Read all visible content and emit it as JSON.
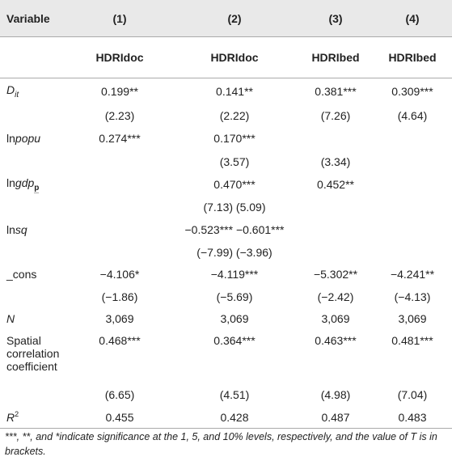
{
  "table": {
    "header": [
      "Variable",
      "(1)",
      "(2)",
      "(3)",
      "(4)"
    ],
    "subheader": [
      null,
      "HDRIdoc",
      "HDRIdoc",
      "HDRIbed",
      "HDRIbed"
    ],
    "rows": [
      {
        "label": [
          {
            "text": "D",
            "style": "italic"
          },
          {
            "text": "it",
            "style": "italic-sub"
          }
        ],
        "cells": [
          "0.199**",
          "0.141**",
          "0.381***",
          "0.309***"
        ]
      },
      {
        "label": null,
        "cells": [
          "(2.23)",
          "(2.22)",
          "(7.26)",
          "(4.64)"
        ]
      },
      {
        "label": [
          {
            "text": "ln",
            "style": "normal"
          },
          {
            "text": "popu",
            "style": "italic"
          }
        ],
        "cells": [
          "0.274***",
          "0.170***",
          null,
          null
        ]
      },
      {
        "label": null,
        "cells": [
          null,
          "(3.57)",
          "(3.34)",
          null
        ]
      },
      {
        "label": [
          {
            "text": "ln",
            "style": "normal"
          },
          {
            "text": "gdp",
            "style": "italic"
          },
          {
            "text": "p",
            "style": "sub"
          }
        ],
        "cells": [
          null,
          "0.470***",
          "0.452**",
          null
        ]
      },
      {
        "label": null,
        "cells": [
          null,
          "(7.13) (5.09)",
          null,
          null
        ]
      },
      {
        "label": [
          {
            "text": "ln",
            "style": "normal"
          },
          {
            "text": "sq",
            "style": "italic"
          }
        ],
        "cells": [
          null,
          "−0.523*** −0.601***",
          null,
          null
        ]
      },
      {
        "label": null,
        "cells": [
          null,
          "(−7.99) (−3.96)",
          null,
          null
        ]
      },
      {
        "label": [
          {
            "text": "_cons",
            "style": "normal"
          }
        ],
        "cells": [
          "−4.106*",
          "−4.119***",
          "−5.302**",
          "−4.241**"
        ]
      },
      {
        "label": null,
        "cells": [
          "(−1.86)",
          "(−5.69)",
          "(−2.42)",
          "(−4.13)"
        ]
      },
      {
        "label": [
          {
            "text": "N",
            "style": "italic"
          }
        ],
        "cells": [
          "3,069",
          "3,069",
          "3,069",
          "3,069"
        ]
      },
      {
        "label": [
          {
            "text": "Spatial correlation coefficient",
            "style": "normal"
          }
        ],
        "cells": [
          "0.468***",
          "0.364***",
          "0.463***",
          "0.481***"
        ]
      },
      {
        "label": null,
        "cells": [
          "(6.65)",
          "(4.51)",
          "(4.98)",
          "(7.04)"
        ]
      },
      {
        "label": [
          {
            "text": "R",
            "style": "italic"
          },
          {
            "text": "2",
            "style": "sup"
          }
        ],
        "cells": [
          "0.455",
          "0.428",
          "0.487",
          "0.483"
        ]
      }
    ]
  },
  "footnote": "***, **, and *indicate significance at the 1, 5, and 10% levels, respectively, and the value of T is in brackets."
}
